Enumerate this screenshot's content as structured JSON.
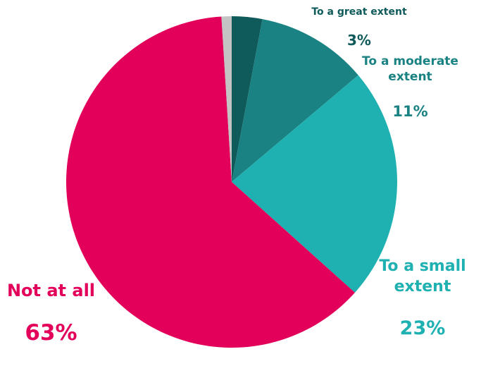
{
  "chart_data": {
    "type": "pie",
    "categories": [
      "To a great extent",
      "To a moderate extent",
      "To a small extent",
      "Not at all",
      null
    ],
    "values": [
      3,
      11,
      23,
      63,
      1
    ],
    "value_labels": [
      "3%",
      "11%",
      "23%",
      "63%",
      null
    ],
    "colors": [
      "#0f5a5a",
      "#1a8282",
      "#1fb1b1",
      "#e3005a",
      "#c4c4c4"
    ]
  }
}
